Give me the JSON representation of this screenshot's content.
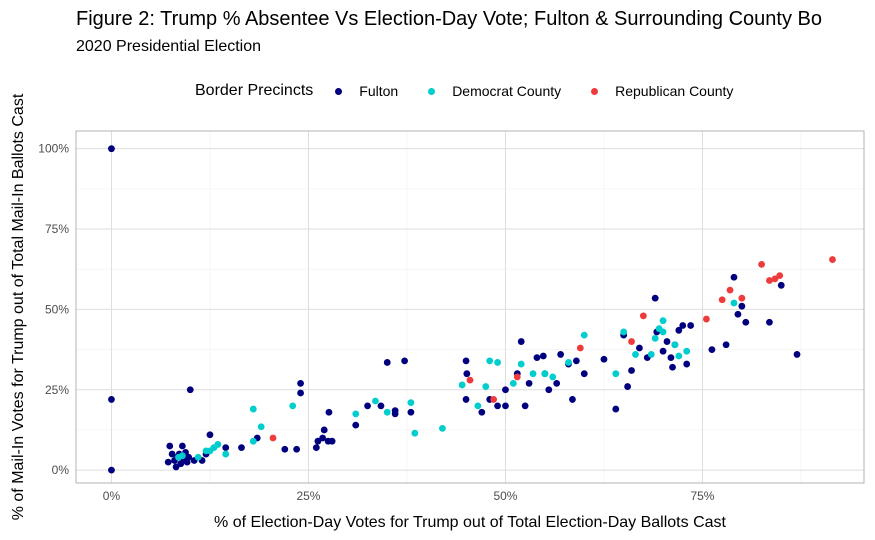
{
  "title": "Figure 2: Trump % Absentee Vs Election-Day Vote; Fulton & Surrounding County Bo",
  "subtitle": "2020 Presidential Election",
  "legend": {
    "title": "Border Precincts",
    "items": [
      {
        "label": "Fulton",
        "color": "#00007f"
      },
      {
        "label": "Democrat County",
        "color": "#00cdcd"
      },
      {
        "label": "Republican County",
        "color": "#ee3b3b"
      }
    ]
  },
  "chart_data": {
    "type": "scatter",
    "xlabel": "% of Election-Day Votes for Trump out of Total Election-Day Ballots Cast",
    "ylabel": "% of Mail-In Votes for Trump out of Total Mail-In Ballots Cast",
    "xlim": [
      -0.045,
      0.955
    ],
    "ylim": [
      -0.04,
      1.055
    ],
    "x_ticks": [
      0,
      0.25,
      0.5,
      0.75
    ],
    "x_tick_labels": [
      "0%",
      "25%",
      "50%",
      "75%"
    ],
    "y_ticks": [
      0,
      0.25,
      0.5,
      0.75,
      1.0
    ],
    "y_tick_labels": [
      "0%",
      "25%",
      "50%",
      "75%",
      "100%"
    ],
    "grid": true,
    "series": [
      {
        "name": "Fulton",
        "color": "#00007f",
        "points": [
          [
            0.0,
            1.0
          ],
          [
            0.0,
            0.22
          ],
          [
            0.0,
            0.0
          ],
          [
            0.072,
            0.025
          ],
          [
            0.074,
            0.075
          ],
          [
            0.077,
            0.05
          ],
          [
            0.08,
            0.03
          ],
          [
            0.082,
            0.01
          ],
          [
            0.084,
            0.04
          ],
          [
            0.086,
            0.05
          ],
          [
            0.088,
            0.02
          ],
          [
            0.09,
            0.075
          ],
          [
            0.092,
            0.03
          ],
          [
            0.094,
            0.055
          ],
          [
            0.096,
            0.025
          ],
          [
            0.098,
            0.04
          ],
          [
            0.1,
            0.25
          ],
          [
            0.105,
            0.03
          ],
          [
            0.115,
            0.03
          ],
          [
            0.12,
            0.05
          ],
          [
            0.125,
            0.11
          ],
          [
            0.145,
            0.07
          ],
          [
            0.165,
            0.07
          ],
          [
            0.185,
            0.1
          ],
          [
            0.22,
            0.065
          ],
          [
            0.235,
            0.065
          ],
          [
            0.24,
            0.24
          ],
          [
            0.24,
            0.27
          ],
          [
            0.26,
            0.07
          ],
          [
            0.262,
            0.09
          ],
          [
            0.268,
            0.1
          ],
          [
            0.27,
            0.125
          ],
          [
            0.275,
            0.09
          ],
          [
            0.276,
            0.18
          ],
          [
            0.28,
            0.09
          ],
          [
            0.31,
            0.14
          ],
          [
            0.325,
            0.2
          ],
          [
            0.342,
            0.2
          ],
          [
            0.36,
            0.175
          ],
          [
            0.36,
            0.185
          ],
          [
            0.35,
            0.335
          ],
          [
            0.372,
            0.34
          ],
          [
            0.38,
            0.18
          ],
          [
            0.45,
            0.34
          ],
          [
            0.451,
            0.3
          ],
          [
            0.45,
            0.22
          ],
          [
            0.47,
            0.18
          ],
          [
            0.48,
            0.22
          ],
          [
            0.49,
            0.2
          ],
          [
            0.5,
            0.25
          ],
          [
            0.5,
            0.2
          ],
          [
            0.515,
            0.3
          ],
          [
            0.52,
            0.4
          ],
          [
            0.525,
            0.2
          ],
          [
            0.53,
            0.27
          ],
          [
            0.54,
            0.35
          ],
          [
            0.548,
            0.355
          ],
          [
            0.55,
            0.3
          ],
          [
            0.555,
            0.25
          ],
          [
            0.565,
            0.27
          ],
          [
            0.57,
            0.36
          ],
          [
            0.58,
            0.33
          ],
          [
            0.585,
            0.22
          ],
          [
            0.59,
            0.34
          ],
          [
            0.6,
            0.3
          ],
          [
            0.625,
            0.345
          ],
          [
            0.64,
            0.19
          ],
          [
            0.65,
            0.42
          ],
          [
            0.655,
            0.26
          ],
          [
            0.66,
            0.31
          ],
          [
            0.67,
            0.38
          ],
          [
            0.68,
            0.35
          ],
          [
            0.69,
            0.535
          ],
          [
            0.692,
            0.43
          ],
          [
            0.7,
            0.37
          ],
          [
            0.705,
            0.4
          ],
          [
            0.71,
            0.35
          ],
          [
            0.712,
            0.32
          ],
          [
            0.715,
            0.39
          ],
          [
            0.72,
            0.435
          ],
          [
            0.725,
            0.45
          ],
          [
            0.73,
            0.33
          ],
          [
            0.735,
            0.45
          ],
          [
            0.762,
            0.375
          ],
          [
            0.78,
            0.39
          ],
          [
            0.79,
            0.6
          ],
          [
            0.795,
            0.485
          ],
          [
            0.8,
            0.51
          ],
          [
            0.805,
            0.46
          ],
          [
            0.835,
            0.46
          ],
          [
            0.85,
            0.575
          ],
          [
            0.87,
            0.36
          ]
        ]
      },
      {
        "name": "Democrat County",
        "color": "#00cdcd",
        "points": [
          [
            0.085,
            0.04
          ],
          [
            0.09,
            0.045
          ],
          [
            0.11,
            0.04
          ],
          [
            0.12,
            0.06
          ],
          [
            0.125,
            0.06
          ],
          [
            0.13,
            0.07
          ],
          [
            0.135,
            0.08
          ],
          [
            0.145,
            0.05
          ],
          [
            0.18,
            0.09
          ],
          [
            0.18,
            0.19
          ],
          [
            0.19,
            0.135
          ],
          [
            0.23,
            0.2
          ],
          [
            0.31,
            0.175
          ],
          [
            0.335,
            0.215
          ],
          [
            0.35,
            0.18
          ],
          [
            0.38,
            0.21
          ],
          [
            0.385,
            0.115
          ],
          [
            0.42,
            0.13
          ],
          [
            0.445,
            0.265
          ],
          [
            0.465,
            0.2
          ],
          [
            0.475,
            0.26
          ],
          [
            0.48,
            0.34
          ],
          [
            0.49,
            0.335
          ],
          [
            0.51,
            0.27
          ],
          [
            0.52,
            0.33
          ],
          [
            0.535,
            0.3
          ],
          [
            0.55,
            0.3
          ],
          [
            0.56,
            0.29
          ],
          [
            0.58,
            0.335
          ],
          [
            0.6,
            0.42
          ],
          [
            0.64,
            0.3
          ],
          [
            0.65,
            0.43
          ],
          [
            0.665,
            0.36
          ],
          [
            0.685,
            0.36
          ],
          [
            0.69,
            0.41
          ],
          [
            0.695,
            0.44
          ],
          [
            0.7,
            0.43
          ],
          [
            0.7,
            0.465
          ],
          [
            0.715,
            0.39
          ],
          [
            0.72,
            0.355
          ],
          [
            0.73,
            0.37
          ],
          [
            0.79,
            0.52
          ]
        ]
      },
      {
        "name": "Republican County",
        "color": "#ee3b3b",
        "points": [
          [
            0.205,
            0.1
          ],
          [
            0.455,
            0.28
          ],
          [
            0.485,
            0.22
          ],
          [
            0.515,
            0.29
          ],
          [
            0.595,
            0.38
          ],
          [
            0.66,
            0.4
          ],
          [
            0.675,
            0.48
          ],
          [
            0.755,
            0.47
          ],
          [
            0.775,
            0.53
          ],
          [
            0.785,
            0.56
          ],
          [
            0.8,
            0.535
          ],
          [
            0.825,
            0.64
          ],
          [
            0.835,
            0.59
          ],
          [
            0.842,
            0.595
          ],
          [
            0.848,
            0.605
          ],
          [
            0.915,
            0.655
          ]
        ]
      }
    ]
  }
}
